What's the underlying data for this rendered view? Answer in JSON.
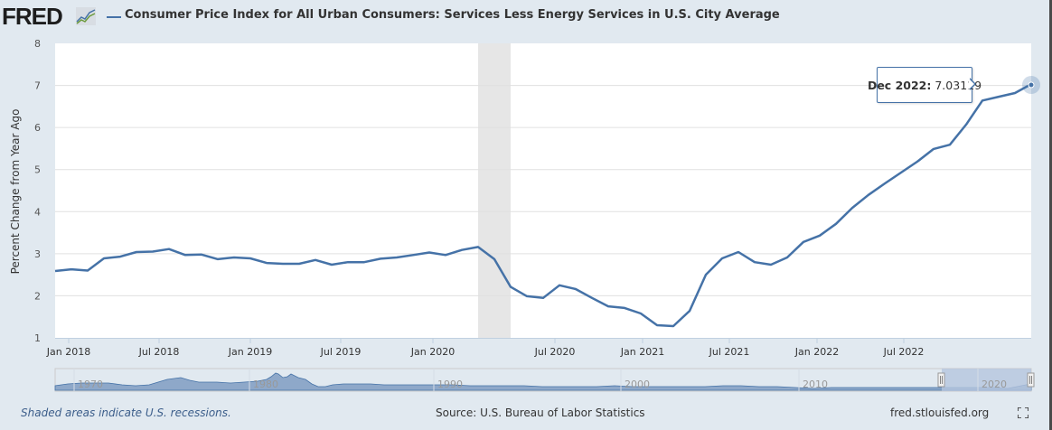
{
  "header": {
    "logo_text": "FRED",
    "series_title": "Consumer Price Index for All Urban Consumers: Services Less Energy Services in U.S. City Average"
  },
  "tooltip": {
    "date": "Dec 2022:",
    "value": "7.03119"
  },
  "footer": {
    "recession_note": "Shaded areas indicate U.S. recessions.",
    "source": "Source: U.S. Bureau of Labor Statistics",
    "url": "fred.stlouisfed.org"
  },
  "colors": {
    "series": "#4572a7",
    "recession": "#e6e6e6",
    "background": "#e1e9f0",
    "plot_background": "#ffffff",
    "navigator_fill": "#8ea8c9",
    "navigator_selection": "#b5c6de"
  },
  "navigator": {
    "labels": [
      "1970",
      "1980",
      "1990",
      "2000",
      "2010",
      "2020"
    ],
    "selected_range": [
      "Dec 2017",
      "Dec 2022"
    ]
  },
  "chart_data": {
    "type": "line",
    "title": "Consumer Price Index for All Urban Consumers: Services Less Energy Services in U.S. City Average",
    "xlabel": "",
    "ylabel": "Percent Change from Year Ago",
    "ylim": [
      1,
      8
    ],
    "yticks": [
      "1",
      "2",
      "3",
      "4",
      "5",
      "6",
      "7",
      "8"
    ],
    "xticks": [
      "Jan 2018",
      "Jul 2018",
      "Jan 2019",
      "Jul 2019",
      "Jan 2020",
      "Jul 2020",
      "Jan 2021",
      "Jul 2021",
      "Jan 2022",
      "Jul 2022"
    ],
    "grid": true,
    "legend": "top-left",
    "recessions": [
      {
        "start": "2020-02",
        "end": "2020-04"
      }
    ],
    "series": [
      {
        "name": "Consumer Price Index for All Urban Consumers: Services Less Energy Services in U.S. City Average",
        "x": [
          "2017-12",
          "2018-01",
          "2018-02",
          "2018-03",
          "2018-04",
          "2018-05",
          "2018-06",
          "2018-07",
          "2018-08",
          "2018-09",
          "2018-10",
          "2018-11",
          "2018-12",
          "2019-01",
          "2019-02",
          "2019-03",
          "2019-04",
          "2019-05",
          "2019-06",
          "2019-07",
          "2019-08",
          "2019-09",
          "2019-10",
          "2019-11",
          "2019-12",
          "2020-01",
          "2020-02",
          "2020-03",
          "2020-04",
          "2020-05",
          "2020-06",
          "2020-07",
          "2020-08",
          "2020-09",
          "2020-10",
          "2020-11",
          "2020-12",
          "2021-01",
          "2021-02",
          "2021-03",
          "2021-04",
          "2021-05",
          "2021-06",
          "2021-07",
          "2021-08",
          "2021-09",
          "2021-10",
          "2021-11",
          "2021-12",
          "2022-01",
          "2022-02",
          "2022-03",
          "2022-04",
          "2022-05",
          "2022-06",
          "2022-07",
          "2022-08",
          "2022-09",
          "2022-10",
          "2022-11",
          "2022-12"
        ],
        "values": [
          2.59,
          2.63,
          2.6,
          2.89,
          2.93,
          3.04,
          3.05,
          3.11,
          2.97,
          2.98,
          2.87,
          2.91,
          2.89,
          2.78,
          2.76,
          2.76,
          2.85,
          2.74,
          2.8,
          2.8,
          2.88,
          2.91,
          2.97,
          3.03,
          2.97,
          3.09,
          3.16,
          2.87,
          2.21,
          1.99,
          1.95,
          2.25,
          2.16,
          1.95,
          1.75,
          1.71,
          1.58,
          1.3,
          1.28,
          1.64,
          2.5,
          2.89,
          3.04,
          2.8,
          2.74,
          2.91,
          3.28,
          3.43,
          3.71,
          4.09,
          4.4,
          4.67,
          4.93,
          5.19,
          5.49,
          5.59,
          6.07,
          6.64,
          6.73,
          6.82,
          7.03119
        ]
      }
    ]
  }
}
